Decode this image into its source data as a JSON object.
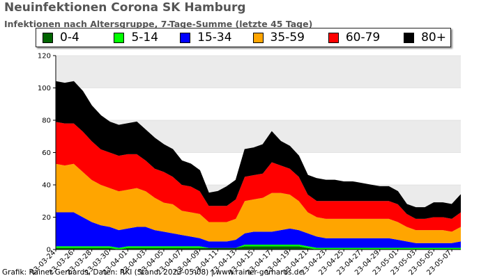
{
  "header": {
    "title": "Neuinfektionen Corona SK Hamburg",
    "subtitle": "Infektionen nach Altersgruppe, 7-Tage-Summe (letzte 45 Tage)"
  },
  "footer": {
    "credit": "Grafik: Rainer Gerhards, Daten: RKI (Stand: 2023-05-08) | www.rainer-gerhards.de"
  },
  "legend": [
    {
      "label": "0-4",
      "color": "#006400"
    },
    {
      "label": "5-14",
      "color": "#00ff00"
    },
    {
      "label": "15-34",
      "color": "#0000ff"
    },
    {
      "label": "35-59",
      "color": "#ffa500"
    },
    {
      "label": "60-79",
      "color": "#ff0000"
    },
    {
      "label": "80+",
      "color": "#000000"
    }
  ],
  "chart_data": {
    "type": "area",
    "stacked": true,
    "ylim": [
      0,
      120
    ],
    "yticks": [
      0,
      20,
      40,
      60,
      80,
      100,
      120
    ],
    "grid": "horizontal alternating bands",
    "legend_position": "top",
    "x": [
      "2023-03-24",
      "2023-03-25",
      "2023-03-26",
      "2023-03-27",
      "2023-03-28",
      "2023-03-29",
      "2023-03-30",
      "2023-03-31",
      "2023-04-01",
      "2023-04-02",
      "2023-04-03",
      "2023-04-04",
      "2023-04-05",
      "2023-04-06",
      "2023-04-07",
      "2023-04-08",
      "2023-04-09",
      "2023-04-10",
      "2023-04-11",
      "2023-04-12",
      "2023-04-13",
      "2023-04-14",
      "2023-04-15",
      "2023-04-16",
      "2023-04-17",
      "2023-04-18",
      "2023-04-19",
      "2023-04-20",
      "2023-04-21",
      "2023-04-22",
      "2023-04-23",
      "2023-04-24",
      "2023-04-25",
      "2023-04-26",
      "2023-04-27",
      "2023-04-28",
      "2023-04-29",
      "2023-04-30",
      "2023-05-01",
      "2023-05-02",
      "2023-05-03",
      "2023-05-04",
      "2023-05-05",
      "2023-05-06",
      "2023-05-07",
      "2023-05-08"
    ],
    "xtick_labels": [
      "23-03-24",
      "23-03-26",
      "23-03-28",
      "23-03-30",
      "23-04-01",
      "23-04-03",
      "23-04-05",
      "23-04-07",
      "23-04-09",
      "23-04-11",
      "23-04-13",
      "23-04-15",
      "23-04-17",
      "23-04-19",
      "23-04-21",
      "23-04-23",
      "23-04-25",
      "23-04-27",
      "23-04-29",
      "23-05-01",
      "23-05-03",
      "23-05-05",
      "23-05-07"
    ],
    "series": [
      {
        "name": "0-4",
        "color": "#006400",
        "values": [
          1,
          1,
          1,
          1,
          1,
          1,
          1,
          0,
          1,
          1,
          1,
          1,
          1,
          1,
          1,
          1,
          1,
          1,
          1,
          1,
          1,
          2,
          2,
          2,
          2,
          2,
          2,
          2,
          1,
          0,
          0,
          0,
          0,
          0,
          0,
          0,
          0,
          0,
          0,
          0,
          0,
          0,
          0,
          0,
          0,
          0
        ]
      },
      {
        "name": "5-14",
        "color": "#00ff00",
        "values": [
          1,
          1,
          1,
          1,
          1,
          1,
          1,
          1,
          1,
          1,
          1,
          1,
          1,
          1,
          1,
          1,
          1,
          0,
          0,
          0,
          0,
          1,
          1,
          1,
          1,
          1,
          1,
          1,
          1,
          1,
          1,
          1,
          1,
          1,
          1,
          1,
          1,
          1,
          1,
          1,
          1,
          1,
          1,
          1,
          1,
          1
        ]
      },
      {
        "name": "15-34",
        "color": "#0000ff",
        "values": [
          21,
          21,
          21,
          18,
          15,
          13,
          12,
          11,
          11,
          12,
          12,
          10,
          9,
          8,
          7,
          6,
          5,
          4,
          4,
          4,
          5,
          7,
          8,
          8,
          8,
          9,
          10,
          9,
          8,
          7,
          6,
          6,
          6,
          6,
          6,
          6,
          6,
          6,
          5,
          4,
          3,
          3,
          3,
          3,
          3,
          4
        ]
      },
      {
        "name": "35-59",
        "color": "#ffa500",
        "values": [
          30,
          29,
          30,
          28,
          26,
          25,
          24,
          24,
          24,
          24,
          22,
          20,
          18,
          18,
          15,
          15,
          15,
          12,
          12,
          12,
          13,
          20,
          20,
          21,
          24,
          23,
          21,
          18,
          13,
          12,
          12,
          12,
          12,
          12,
          12,
          12,
          12,
          12,
          11,
          9,
          8,
          8,
          8,
          8,
          7,
          9
        ]
      },
      {
        "name": "60-79",
        "color": "#ff0000",
        "values": [
          26,
          26,
          25,
          25,
          24,
          22,
          22,
          22,
          22,
          21,
          19,
          18,
          19,
          17,
          16,
          16,
          14,
          10,
          10,
          10,
          12,
          15,
          15,
          15,
          19,
          17,
          16,
          15,
          11,
          10,
          11,
          11,
          11,
          11,
          11,
          11,
          11,
          11,
          11,
          8,
          7,
          7,
          8,
          8,
          8,
          9
        ]
      },
      {
        "name": "80+",
        "color": "#000000",
        "values": [
          25,
          25,
          26,
          25,
          22,
          21,
          19,
          19,
          19,
          20,
          19,
          19,
          17,
          17,
          15,
          14,
          13,
          8,
          9,
          12,
          12,
          17,
          17,
          18,
          19,
          15,
          14,
          13,
          12,
          14,
          13,
          13,
          12,
          12,
          11,
          10,
          9,
          9,
          8,
          6,
          7,
          7,
          9,
          9,
          9,
          11
        ]
      }
    ]
  }
}
